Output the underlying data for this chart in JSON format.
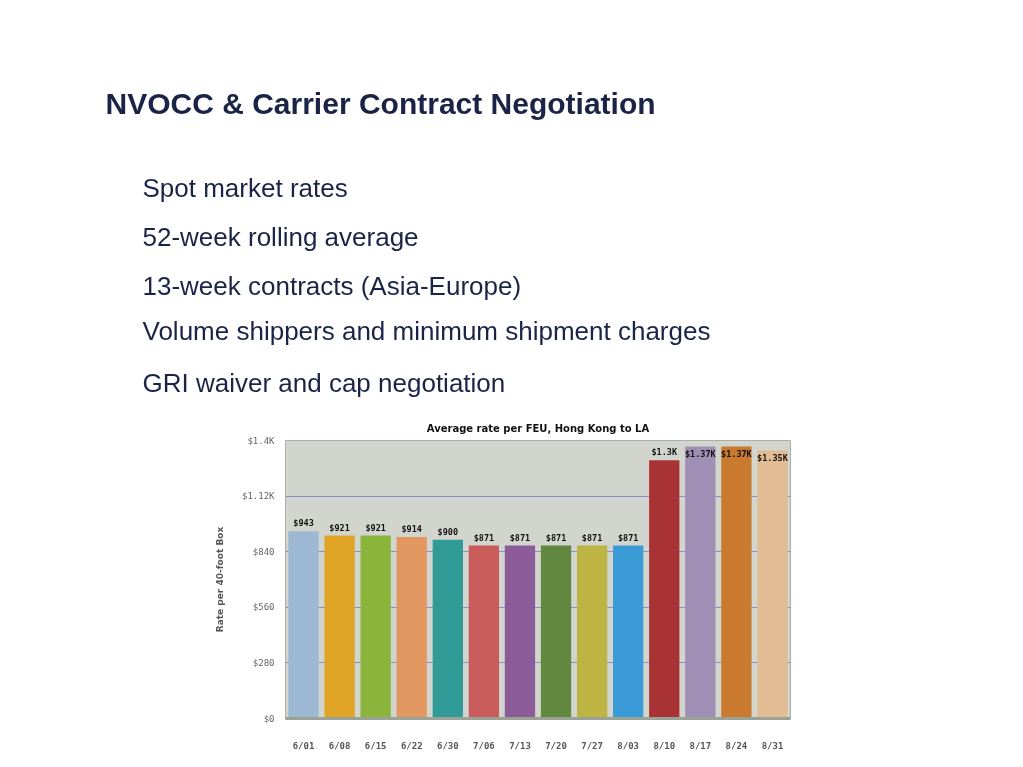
{
  "chart_data": {
    "type": "bar",
    "title": "NVOCC & Carrier Contract Negotiation",
    "subtitle": "Average rate per FEU, Hong Kong to LA",
    "ylabel": "Rate per 40-foot Box",
    "annotations": [
      "Spot market rates",
      "52-week rolling average",
      "13-week contracts (Asia-Europe)",
      "Volume shippers and minimum shipment charges",
      "GRI waiver and cap negotiation"
    ],
    "categories": [
      "6/01",
      "6/08",
      "6/15",
      "6/22",
      "6/30",
      "7/06",
      "7/13",
      "7/20",
      "7/27",
      "8/03",
      "8/10",
      "8/17",
      "8/24",
      "8/31"
    ],
    "values": [
      943,
      921,
      921,
      914,
      900,
      871,
      871,
      871,
      871,
      871,
      1300,
      1370,
      1370,
      1350
    ],
    "value_labels": [
      "$943",
      "$921",
      "$921",
      "$914",
      "$900",
      "$871",
      "$871",
      "$871",
      "$871",
      "$871",
      "$1.3K",
      "$1.37K",
      "$1.37K",
      "$1.35K"
    ],
    "colors": [
      "#9db8d2",
      "#e0a526",
      "#8ab43a",
      "#e29660",
      "#2f9a96",
      "#c95b5b",
      "#8c5c98",
      "#62883f",
      "#bdb444",
      "#3b9bd6",
      "#a83234",
      "#a08fb5",
      "#c97a2e",
      "#e2bc92"
    ],
    "ylim": [
      0,
      1400
    ],
    "yticks": [
      {
        "value": 0,
        "label": "$0"
      },
      {
        "value": 280,
        "label": "$280"
      },
      {
        "value": 560,
        "label": "$560"
      },
      {
        "value": 840,
        "label": "$840"
      },
      {
        "value": 1120,
        "label": "$1.12K"
      },
      {
        "value": 1400,
        "label": "$1.4K"
      }
    ],
    "grid": "y"
  }
}
